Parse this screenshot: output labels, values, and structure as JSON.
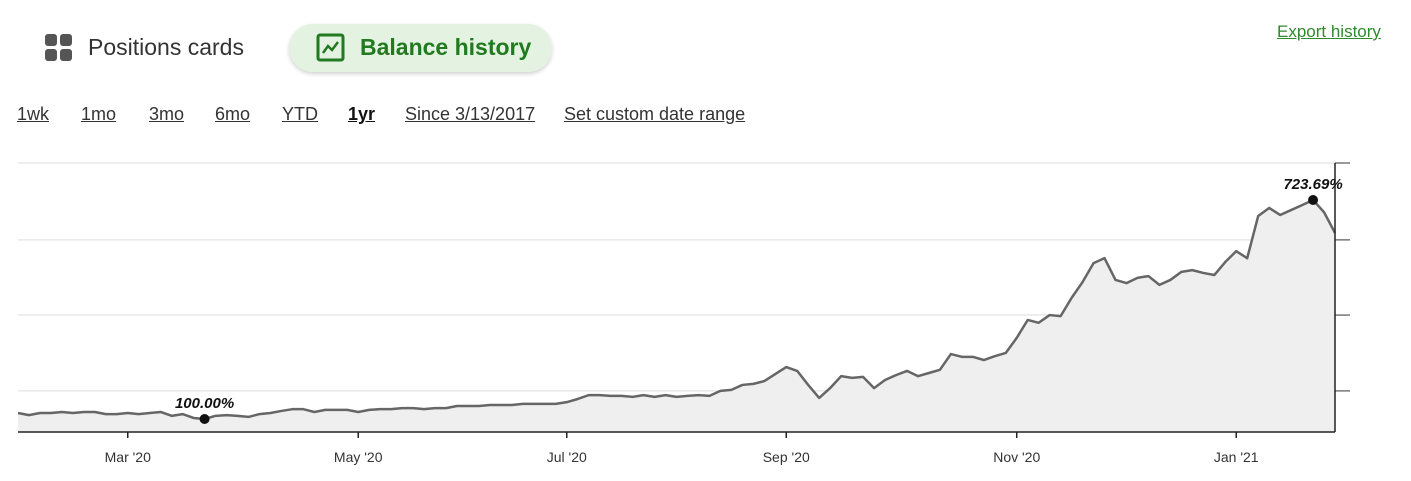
{
  "tabs": [
    {
      "label": "Positions cards",
      "active": false
    },
    {
      "label": "Balance history",
      "active": true
    }
  ],
  "export_link": "Export history",
  "ranges": {
    "items": [
      "1wk",
      "1mo",
      "3mo",
      "6mo",
      "YTD",
      "1yr",
      "Since 3/13/2017",
      "Set custom date range"
    ],
    "selected": 5
  },
  "chart_data": {
    "type": "line",
    "color": "#666666",
    "fill": "#efefef",
    "grid": true,
    "ylim": [
      63,
      829
    ],
    "yticks": [
      180,
      396,
      610,
      829
    ],
    "categories": [
      null,
      null,
      null,
      null,
      null,
      null,
      null,
      null,
      null,
      null,
      "Mar '20",
      null,
      null,
      null,
      null,
      null,
      null,
      null,
      null,
      null,
      null,
      null,
      null,
      null,
      null,
      null,
      null,
      null,
      null,
      null,
      null,
      "May '20",
      null,
      null,
      null,
      null,
      null,
      null,
      null,
      null,
      null,
      null,
      null,
      null,
      null,
      null,
      null,
      null,
      null,
      null,
      "Jul '20",
      null,
      null,
      null,
      null,
      null,
      null,
      null,
      null,
      null,
      null,
      null,
      null,
      null,
      null,
      null,
      null,
      null,
      null,
      null,
      "Sep '20",
      null,
      null,
      null,
      null,
      null,
      null,
      null,
      null,
      null,
      null,
      null,
      null,
      null,
      null,
      null,
      null,
      null,
      null,
      null,
      null,
      "Nov '20",
      null,
      null,
      null,
      null,
      null,
      null,
      null,
      null,
      null,
      null,
      null,
      null,
      null,
      null,
      null,
      null,
      null,
      null,
      null,
      "Jan '21",
      null,
      null,
      null,
      null,
      null,
      null,
      null,
      null,
      null
    ],
    "values": [
      117,
      111,
      117,
      117,
      120,
      117,
      120,
      120,
      114,
      114,
      117,
      114,
      117,
      120,
      109,
      114,
      103,
      100,
      109,
      111,
      109,
      106,
      114,
      117,
      123,
      128,
      128,
      120,
      126,
      126,
      126,
      120,
      126,
      128,
      128,
      131,
      131,
      128,
      131,
      131,
      137,
      137,
      137,
      140,
      140,
      140,
      143,
      143,
      143,
      143,
      148,
      157,
      168,
      168,
      166,
      166,
      163,
      168,
      163,
      168,
      163,
      166,
      168,
      166,
      180,
      183,
      197,
      200,
      208,
      228,
      248,
      237,
      197,
      160,
      188,
      222,
      217,
      220,
      188,
      211,
      225,
      237,
      222,
      231,
      240,
      285,
      277,
      277,
      268,
      279,
      288,
      331,
      382,
      374,
      396,
      393,
      445,
      490,
      544,
      558,
      496,
      487,
      502,
      507,
      482,
      496,
      519,
      524,
      516,
      510,
      547,
      578,
      558,
      678,
      701,
      681,
      695,
      709,
      723.69,
      689,
      630
    ],
    "value_labels": [
      null,
      null,
      null,
      null,
      null,
      null,
      null,
      null,
      null,
      null,
      null,
      null,
      null,
      null,
      null,
      null,
      null,
      "100.00%",
      null,
      null,
      null,
      null,
      null,
      null,
      null,
      null,
      null,
      null,
      null,
      null,
      null,
      null,
      null,
      null,
      null,
      null,
      null,
      null,
      null,
      null,
      null,
      null,
      null,
      null,
      null,
      null,
      null,
      null,
      null,
      null,
      null,
      null,
      null,
      null,
      null,
      null,
      null,
      null,
      null,
      null,
      null,
      null,
      null,
      null,
      null,
      null,
      null,
      null,
      null,
      null,
      null,
      null,
      null,
      null,
      null,
      null,
      null,
      null,
      null,
      null,
      null,
      null,
      null,
      null,
      null,
      null,
      null,
      null,
      null,
      null,
      null,
      null,
      null,
      null,
      null,
      null,
      null,
      null,
      null,
      null,
      null,
      null,
      null,
      null,
      null,
      null,
      null,
      null,
      null,
      null,
      null,
      null,
      null,
      null,
      null,
      null,
      null,
      null,
      "723.69%",
      null,
      null
    ]
  }
}
